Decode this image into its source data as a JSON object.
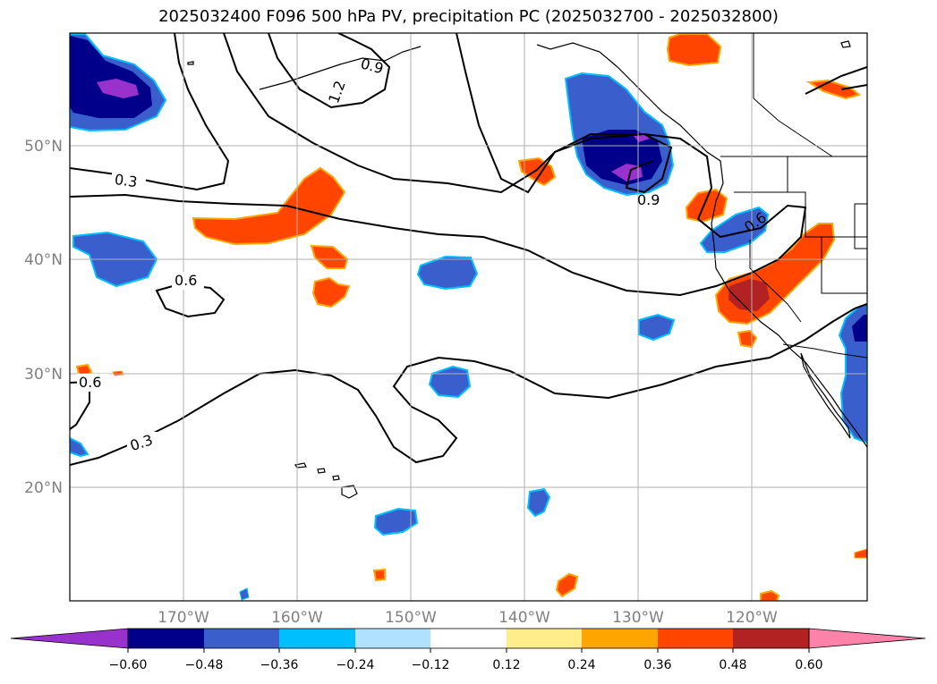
{
  "title": "2025032400 F096 500 hPa PV, precipitation PC (2025032700 - 2025032800)",
  "lat_labels": [
    "50°N",
    "40°N",
    "30°N",
    "20°N"
  ],
  "lon_labels": [
    "170°W",
    "160°W",
    "150°W",
    "140°W",
    "130°W",
    "120°W"
  ],
  "contour_labels": [
    "0.3",
    "0.6",
    "0.6",
    "0.3",
    "1.2",
    "0.9",
    "0.9",
    "0.6"
  ],
  "colorbar": {
    "tick_labels": [
      "−0.60",
      "−0.48",
      "−0.36",
      "−0.24",
      "−0.12",
      "0.12",
      "0.24",
      "0.36",
      "0.48",
      "0.60"
    ],
    "colors": [
      "#9932cc",
      "#00008b",
      "#3a5fcd",
      "#00bfff",
      "#b0e2ff",
      "#ffffff",
      "#ffec8b",
      "#ffa500",
      "#ff4500",
      "#b22222",
      "#ff82ab"
    ]
  },
  "colors": {
    "frame": "#000000",
    "grid": "#b0b0b0",
    "tick_text": "#808080"
  }
}
